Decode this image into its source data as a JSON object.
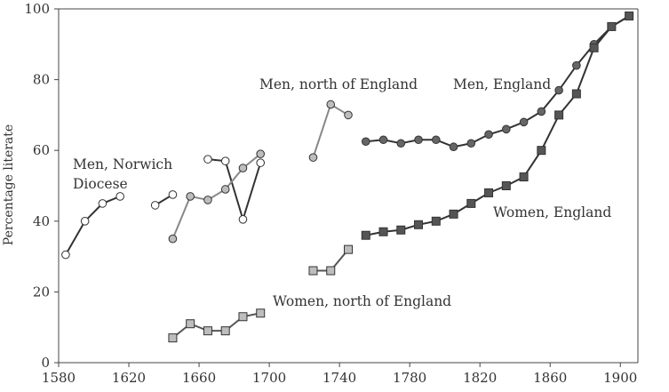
{
  "chart_data": {
    "type": "line",
    "title": "",
    "xlabel": "",
    "ylabel": "Percentage literate",
    "xlim": [
      1580,
      1910
    ],
    "ylim": [
      0,
      100
    ],
    "xticks": [
      1580,
      1620,
      1660,
      1700,
      1740,
      1780,
      1820,
      1860,
      1900
    ],
    "yticks": [
      0,
      20,
      40,
      60,
      80,
      100
    ],
    "grid": false,
    "legend": "none",
    "series": [
      {
        "name": "Men, Norwich Diocese",
        "marker": "circle",
        "fill": "#ffffff",
        "line": "#333333",
        "segments": [
          [
            [
              1584,
              30.5
            ],
            [
              1595,
              40
            ],
            [
              1605,
              45
            ],
            [
              1615,
              47
            ]
          ],
          [
            [
              1635,
              44.5
            ],
            [
              1645,
              47.5
            ]
          ],
          [
            [
              1665,
              57.5
            ],
            [
              1675,
              57
            ],
            [
              1685,
              40.5
            ],
            [
              1695,
              56.5
            ]
          ]
        ]
      },
      {
        "name": "Men, north of England",
        "marker": "circle",
        "fill": "#bdbdbd",
        "line": "#888888",
        "segments": [
          [
            [
              1645,
              35
            ],
            [
              1655,
              47
            ],
            [
              1665,
              46
            ],
            [
              1675,
              49
            ],
            [
              1685,
              55
            ],
            [
              1695,
              59
            ]
          ],
          [
            [
              1725,
              58
            ],
            [
              1735,
              73
            ],
            [
              1745,
              70
            ]
          ]
        ]
      },
      {
        "name": "Women, north of England",
        "marker": "square",
        "fill": "#bdbdbd",
        "line": "#555555",
        "segments": [
          [
            [
              1645,
              7
            ],
            [
              1655,
              11
            ],
            [
              1665,
              9
            ],
            [
              1675,
              9
            ],
            [
              1685,
              13
            ],
            [
              1695,
              14
            ]
          ],
          [
            [
              1725,
              26
            ],
            [
              1735,
              26
            ],
            [
              1745,
              32
            ]
          ]
        ]
      },
      {
        "name": "Men, England",
        "marker": "circle",
        "fill": "#666666",
        "line": "#333333",
        "segments": [
          [
            [
              1755,
              62.5
            ],
            [
              1765,
              63
            ],
            [
              1775,
              62
            ],
            [
              1785,
              63
            ],
            [
              1795,
              63
            ],
            [
              1805,
              61
            ],
            [
              1815,
              62
            ],
            [
              1825,
              64.5
            ],
            [
              1835,
              66
            ],
            [
              1845,
              68
            ],
            [
              1855,
              71
            ],
            [
              1865,
              77
            ],
            [
              1875,
              84
            ],
            [
              1885,
              90
            ],
            [
              1895,
              95
            ],
            [
              1905,
              98
            ]
          ]
        ]
      },
      {
        "name": "Women, England",
        "marker": "square",
        "fill": "#555555",
        "line": "#333333",
        "segments": [
          [
            [
              1755,
              36
            ],
            [
              1765,
              37
            ],
            [
              1775,
              37.5
            ],
            [
              1785,
              39
            ],
            [
              1795,
              40
            ],
            [
              1805,
              42
            ],
            [
              1815,
              45
            ],
            [
              1825,
              48
            ],
            [
              1835,
              50
            ],
            [
              1845,
              52.5
            ],
            [
              1855,
              60
            ],
            [
              1865,
              70
            ],
            [
              1875,
              76
            ],
            [
              1885,
              89
            ],
            [
              1895,
              95
            ],
            [
              1905,
              98
            ]
          ]
        ]
      }
    ],
    "annotations": {
      "men_norwich_line1": "Men, Norwich",
      "men_norwich_line2": "Diocese",
      "men_north": "Men, north of England",
      "men_england": "Men, England",
      "women_england": "Women, England",
      "women_north": "Women, north of England"
    }
  }
}
